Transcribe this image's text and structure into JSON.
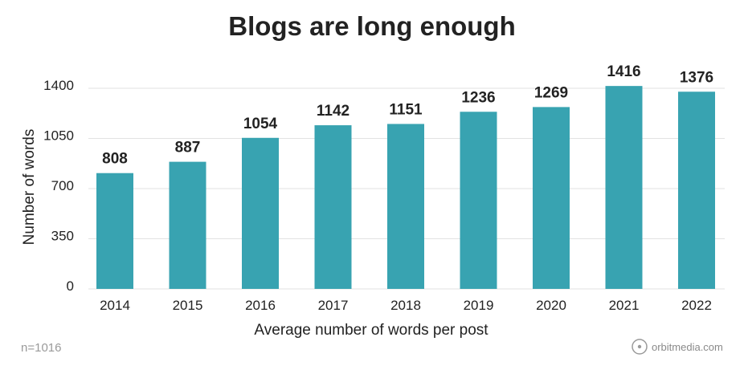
{
  "chart_data": {
    "type": "bar",
    "title": "Blogs are long enough",
    "xlabel": "Average number of words per post",
    "ylabel": "Number of words",
    "categories": [
      "2014",
      "2015",
      "2016",
      "2017",
      "2018",
      "2019",
      "2020",
      "2021",
      "2022"
    ],
    "values": [
      808,
      887,
      1054,
      1142,
      1151,
      1236,
      1269,
      1416,
      1376
    ],
    "yticks": [
      0,
      350,
      700,
      1050,
      1400
    ],
    "ylim": [
      0,
      1400
    ],
    "grid": true,
    "bar_color": "#38a3b1"
  },
  "footer": {
    "sample_note": "n=1016",
    "brand": "orbitmedia.com"
  }
}
